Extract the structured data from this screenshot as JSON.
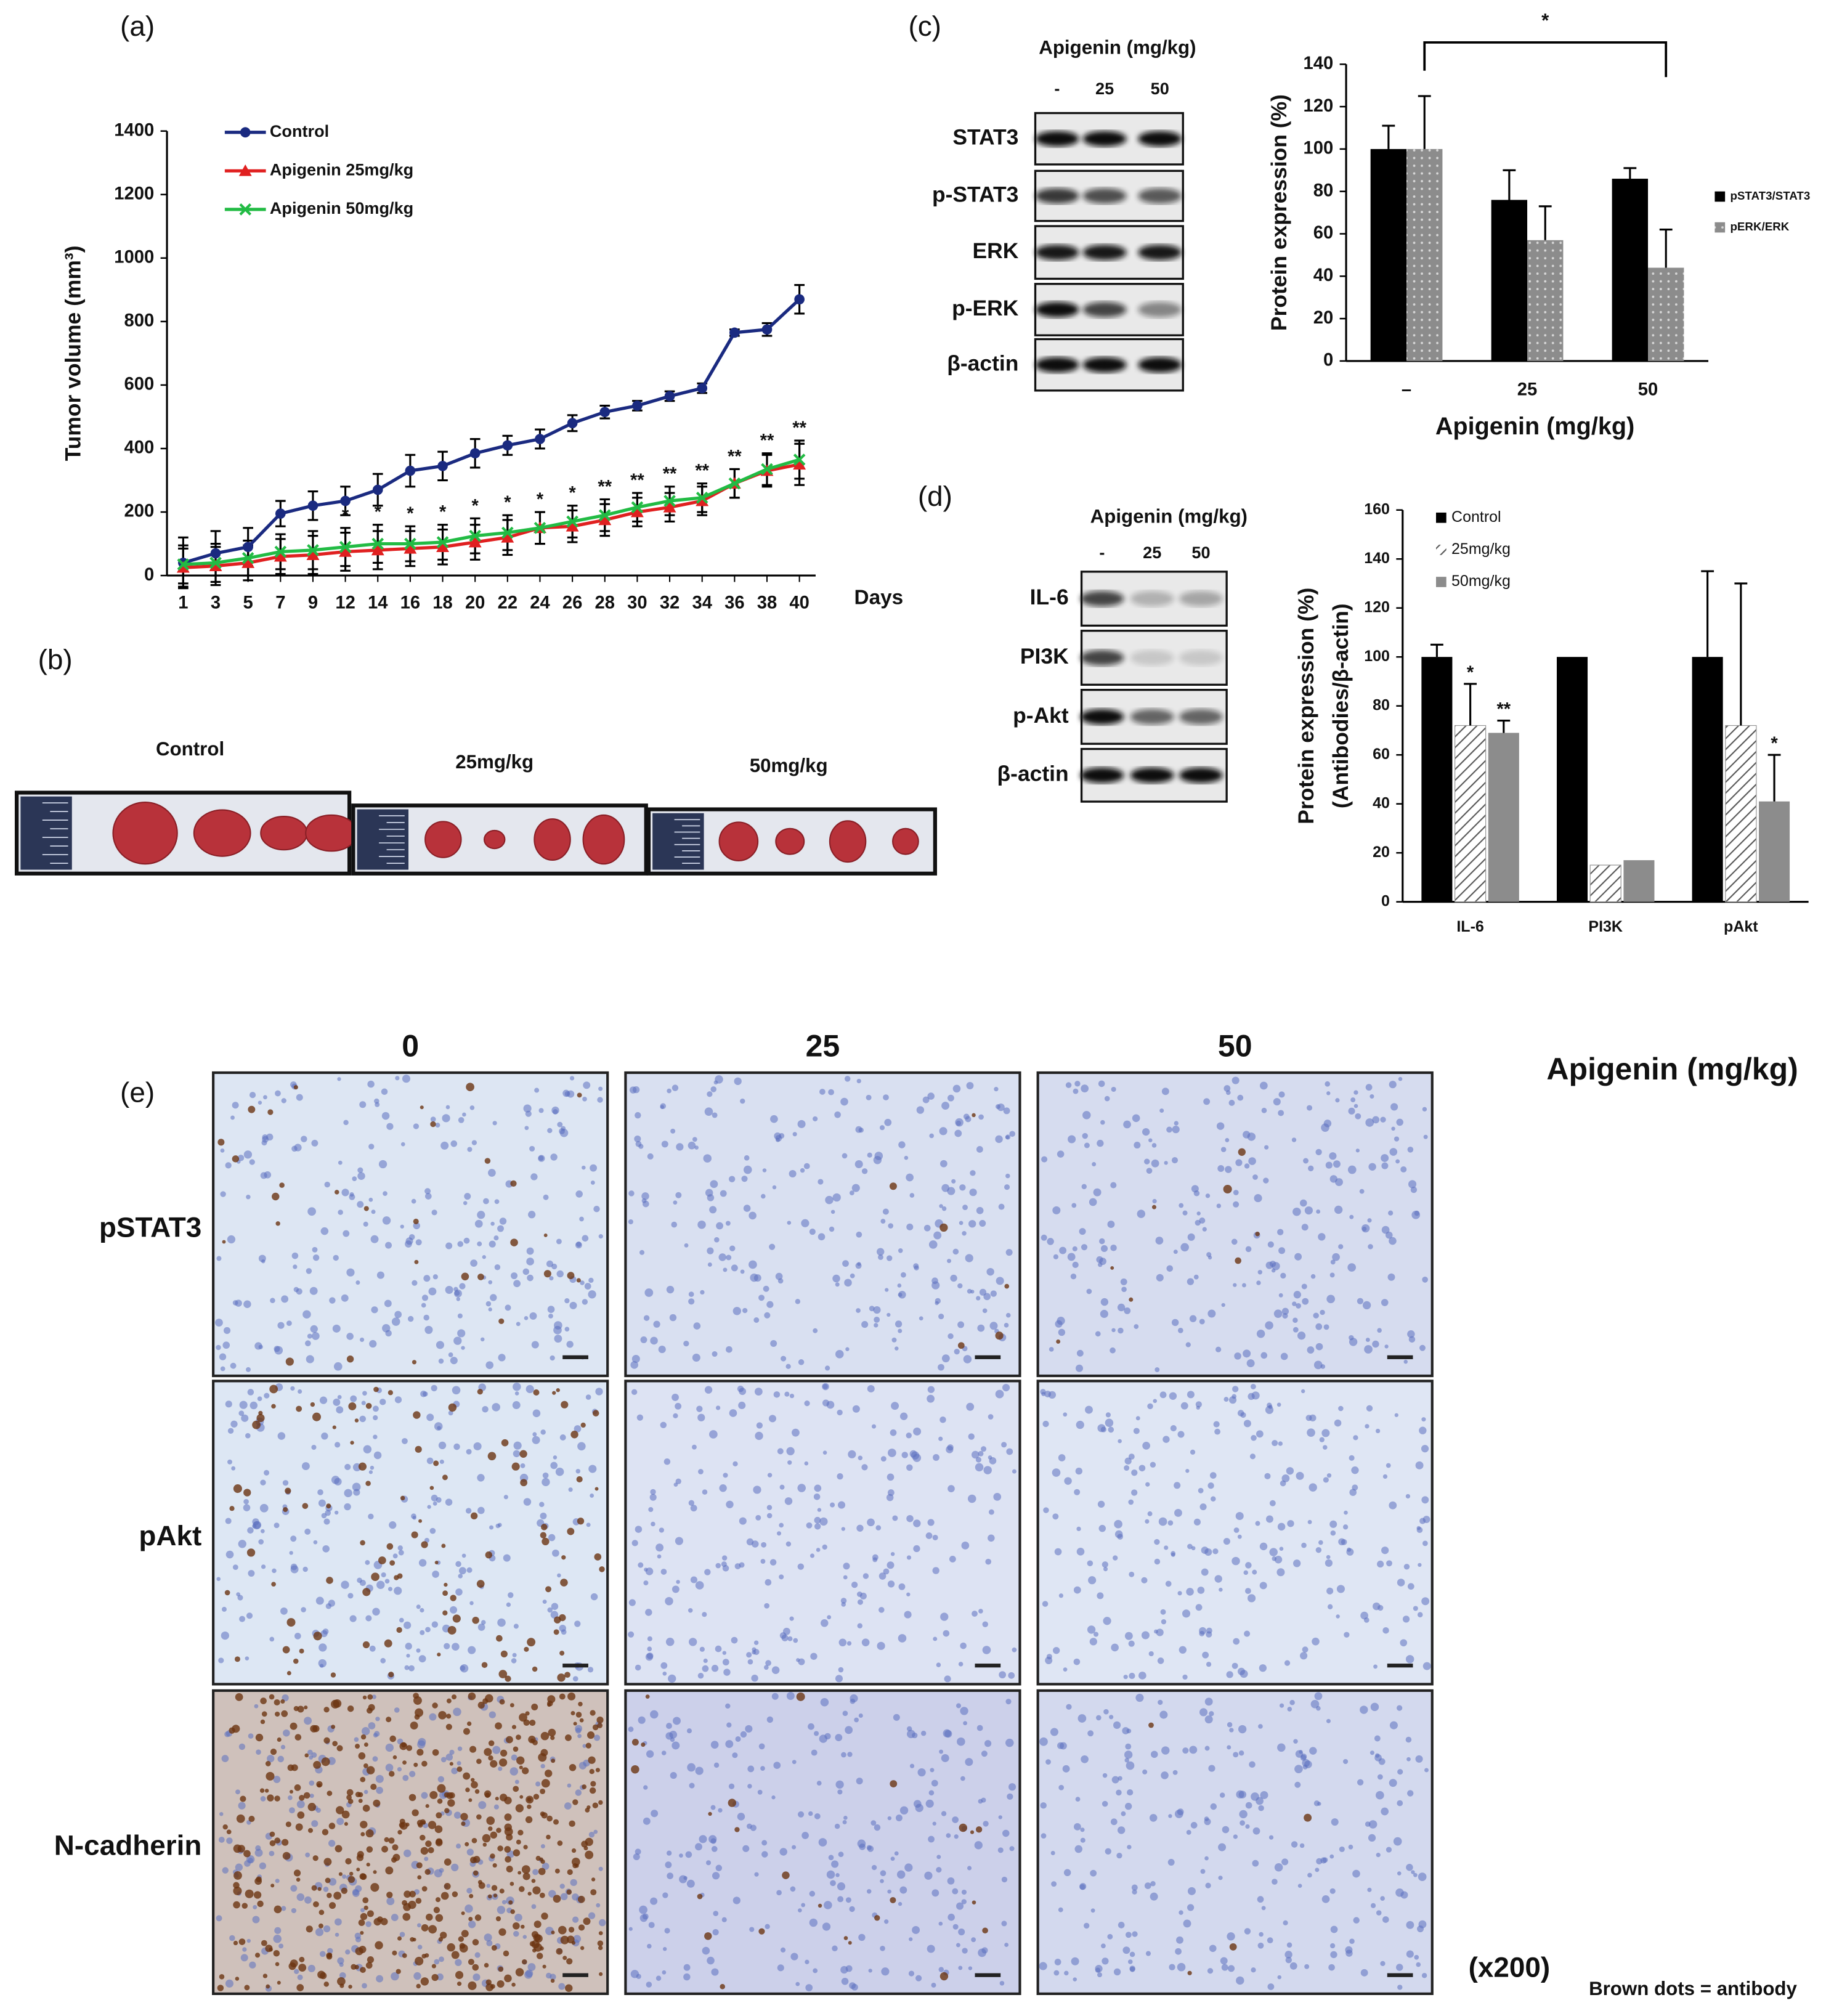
{
  "panel_labels": [
    "(a)",
    "(b)",
    "(c)",
    "(d)",
    "(e)"
  ],
  "chart_data": [
    {
      "type": "line",
      "categories": [
        "1",
        "3",
        "5",
        "7",
        "9",
        "12",
        "14",
        "16",
        "18",
        "20",
        "22",
        "24",
        "26",
        "28",
        "30",
        "32",
        "34",
        "36",
        "38",
        "40"
      ],
      "xlabel": "Days",
      "ylabel": "Tumor volume (mm³)",
      "ylim": [
        0,
        1400
      ],
      "yticks": [
        0,
        200,
        400,
        600,
        800,
        1000,
        1200,
        1400
      ],
      "series": [
        {
          "name": "Control",
          "color": "#1a2a80",
          "marker": "circle",
          "values": [
            40,
            70,
            90,
            195,
            220,
            235,
            270,
            330,
            345,
            385,
            410,
            430,
            480,
            515,
            535,
            565,
            590,
            765,
            775,
            870
          ],
          "errors": [
            80,
            70,
            60,
            40,
            45,
            45,
            50,
            50,
            45,
            45,
            30,
            30,
            25,
            20,
            15,
            15,
            15,
            10,
            20,
            45
          ]
        },
        {
          "name": "Apigenin 25mg/kg",
          "color": "#e02020",
          "marker": "triangle",
          "values": [
            25,
            30,
            40,
            60,
            65,
            75,
            80,
            85,
            90,
            105,
            120,
            150,
            155,
            175,
            200,
            215,
            235,
            290,
            330,
            350
          ],
          "errors": [
            60,
            60,
            55,
            55,
            60,
            60,
            60,
            55,
            55,
            55,
            55,
            50,
            50,
            50,
            45,
            45,
            45,
            45,
            50,
            65
          ]
        },
        {
          "name": "Apigenin 50mg/kg",
          "color": "#22bb44",
          "marker": "x",
          "values": [
            35,
            40,
            55,
            75,
            80,
            90,
            100,
            100,
            105,
            125,
            135,
            150,
            170,
            190,
            215,
            235,
            245,
            290,
            335,
            365
          ],
          "errors": [
            60,
            60,
            55,
            55,
            60,
            60,
            60,
            55,
            55,
            55,
            55,
            50,
            50,
            50,
            45,
            45,
            45,
            45,
            50,
            60
          ]
        }
      ],
      "significance": [
        null,
        null,
        null,
        null,
        null,
        "*",
        "*",
        "*",
        "*",
        "*",
        "*",
        "*",
        "*",
        "**",
        "**",
        "**",
        "**",
        "**",
        "**",
        "**"
      ]
    },
    {
      "type": "bar",
      "categories": [
        "–",
        "25",
        "50"
      ],
      "xlabel": "Apigenin (mg/kg)",
      "ylabel": [
        "Protein expression (%)"
      ],
      "ylim": [
        0,
        140
      ],
      "yticks": [
        0,
        20,
        40,
        60,
        80,
        100,
        120,
        140
      ],
      "bracket_label": "*",
      "series": [
        {
          "name": "pSTAT3/STAT3",
          "color": "#000000",
          "pattern": "solid",
          "values": [
            100,
            76,
            86
          ],
          "errors": [
            11,
            14,
            5
          ]
        },
        {
          "name": "pERK/ERK",
          "color": "#8c8c8c",
          "pattern": "dots",
          "values": [
            100,
            57,
            44
          ],
          "errors": [
            25,
            16,
            18
          ]
        }
      ]
    },
    {
      "type": "bar",
      "categories": [
        "IL-6",
        "PI3K",
        "pAkt"
      ],
      "ylabel": [
        "Protein expression (%)",
        "(Antibodies/β-actin)"
      ],
      "ylim": [
        0,
        160
      ],
      "yticks": [
        0,
        20,
        40,
        60,
        80,
        100,
        120,
        140,
        160
      ],
      "series": [
        {
          "name": "Control",
          "color": "#000000",
          "pattern": "solid",
          "values": [
            100,
            100,
            100
          ],
          "errors": [
            5,
            null,
            35
          ],
          "significance": [
            null,
            null,
            null
          ]
        },
        {
          "name": "25mg/kg",
          "color": "#555555",
          "pattern": "hatch",
          "values": [
            72,
            15,
            72
          ],
          "errors": [
            17,
            null,
            58
          ],
          "significance": [
            "*",
            null,
            null
          ]
        },
        {
          "name": "50mg/kg",
          "color": "#8c8c8c",
          "pattern": "solid",
          "values": [
            69,
            17,
            41
          ],
          "errors": [
            5,
            null,
            19
          ],
          "significance": [
            "**",
            null,
            "*"
          ]
        }
      ]
    }
  ],
  "tumor_photos": {
    "labels": [
      "Control",
      "25mg/kg",
      "50mg/kg"
    ]
  },
  "blots": [
    {
      "header": "Apigenin (mg/kg)",
      "lanes": [
        "-",
        "25",
        "50"
      ],
      "rows": [
        "STAT3",
        "p-STAT3",
        "ERK",
        "p-ERK",
        "β-actin"
      ]
    },
    {
      "header": "Apigenin (mg/kg)",
      "lanes": [
        "-",
        "25",
        "50"
      ],
      "rows": [
        "IL-6",
        "PI3K",
        "p-Akt",
        "β-actin"
      ]
    }
  ],
  "ihc": {
    "header": "Apigenin (mg/kg)",
    "columns": [
      "0",
      "25",
      "50"
    ],
    "rows": [
      "pSTAT3",
      "pAkt",
      "N-cadherin"
    ],
    "magnification": "(x200)",
    "note": "Brown dots = antibody"
  }
}
